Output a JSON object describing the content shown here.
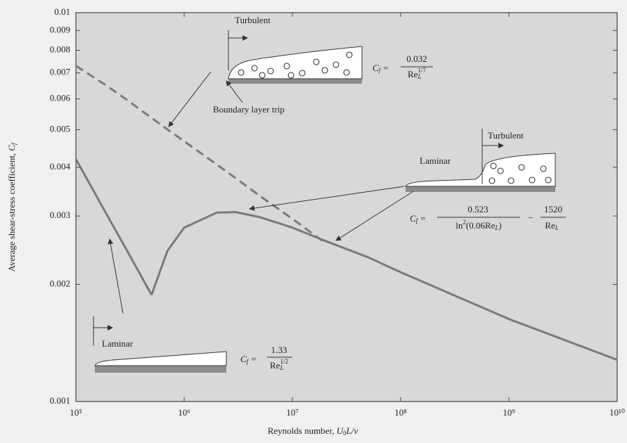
{
  "chart_data": {
    "type": "line",
    "xlabel": [
      "Reynolds number, ",
      "U",
      "0",
      "L/ν"
    ],
    "ylabel": [
      "Average shear-stress coefficient, ",
      "C",
      "f"
    ],
    "x": [
      100000,
      200000,
      300000,
      500000,
      700000,
      1000000,
      2000000,
      3000000,
      5000000,
      10000000,
      20000000,
      50000000,
      100000000,
      1000000000,
      10000000000
    ],
    "series": [
      {
        "color": "#7a7a7a",
        "dashed": false,
        "values": [
          0.0042,
          0.00297,
          0.00243,
          0.00188,
          null,
          null,
          null,
          null,
          null,
          null,
          null,
          null,
          null,
          null,
          null
        ]
      },
      {
        "color": "#7a7a7a",
        "dashed": false,
        "values": [
          null,
          null,
          null,
          0.00188,
          0.00244,
          0.0028,
          0.00306,
          0.00307,
          0.00298,
          0.0028,
          0.00259,
          0.00235,
          0.00215,
          0.00163,
          0.00128
        ]
      },
      {
        "color": "#7a7a7a",
        "dashed": true,
        "values": [
          0.0073,
          0.00644,
          0.00595,
          0.00536,
          0.00501,
          0.00467,
          0.00407,
          0.00375,
          0.00338,
          0.00295,
          0.00256,
          null,
          null,
          null,
          null
        ]
      }
    ],
    "xscale": "log",
    "yscale": "log",
    "xlim": [
      100000,
      10000000000
    ],
    "ylim": [
      0.001,
      0.01
    ],
    "xticks": [
      {
        "value": 100000,
        "label": "10⁵"
      },
      {
        "value": 1000000,
        "label": "10⁶"
      },
      {
        "value": 10000000,
        "label": "10⁷"
      },
      {
        "value": 100000000,
        "label": "10⁸"
      },
      {
        "value": 1000000000,
        "label": "10⁹"
      },
      {
        "value": 10000000000,
        "label": "10¹⁰"
      }
    ],
    "yticks": [
      0.001,
      0.002,
      0.003,
      0.004,
      0.005,
      0.006,
      0.007,
      0.008,
      0.009,
      0.01
    ],
    "grid": false,
    "annotations": {
      "turbulent_top": "Turbulent",
      "trip": "Boundary layer trip",
      "laminar_right": "Laminar",
      "turbulent_right": "Turbulent",
      "laminar_bottom": "Laminar",
      "formula_turbulent": {
        "c": "C",
        "sub": "f",
        "eq": "=",
        "num": "0.032",
        "den": "Re",
        "den_sub": "L",
        "den_sup": "1/7"
      },
      "formula_laminar": {
        "c": "C",
        "sub": "f",
        "eq": "=",
        "num": "1.33",
        "den": "Re",
        "den_sub": "L",
        "den_sup": "1/2"
      },
      "formula_transition": {
        "c": "C",
        "sub": "f",
        "eq": "=",
        "num1": "0.523",
        "den1_a": "ln",
        "den1_sup": "2",
        "den1_b": "(0.06Re",
        "den1_sub": "L",
        "den1_c": ")",
        "minus": "−",
        "num2": "1520",
        "den2": "Re",
        "den2_sub": "L"
      }
    }
  }
}
